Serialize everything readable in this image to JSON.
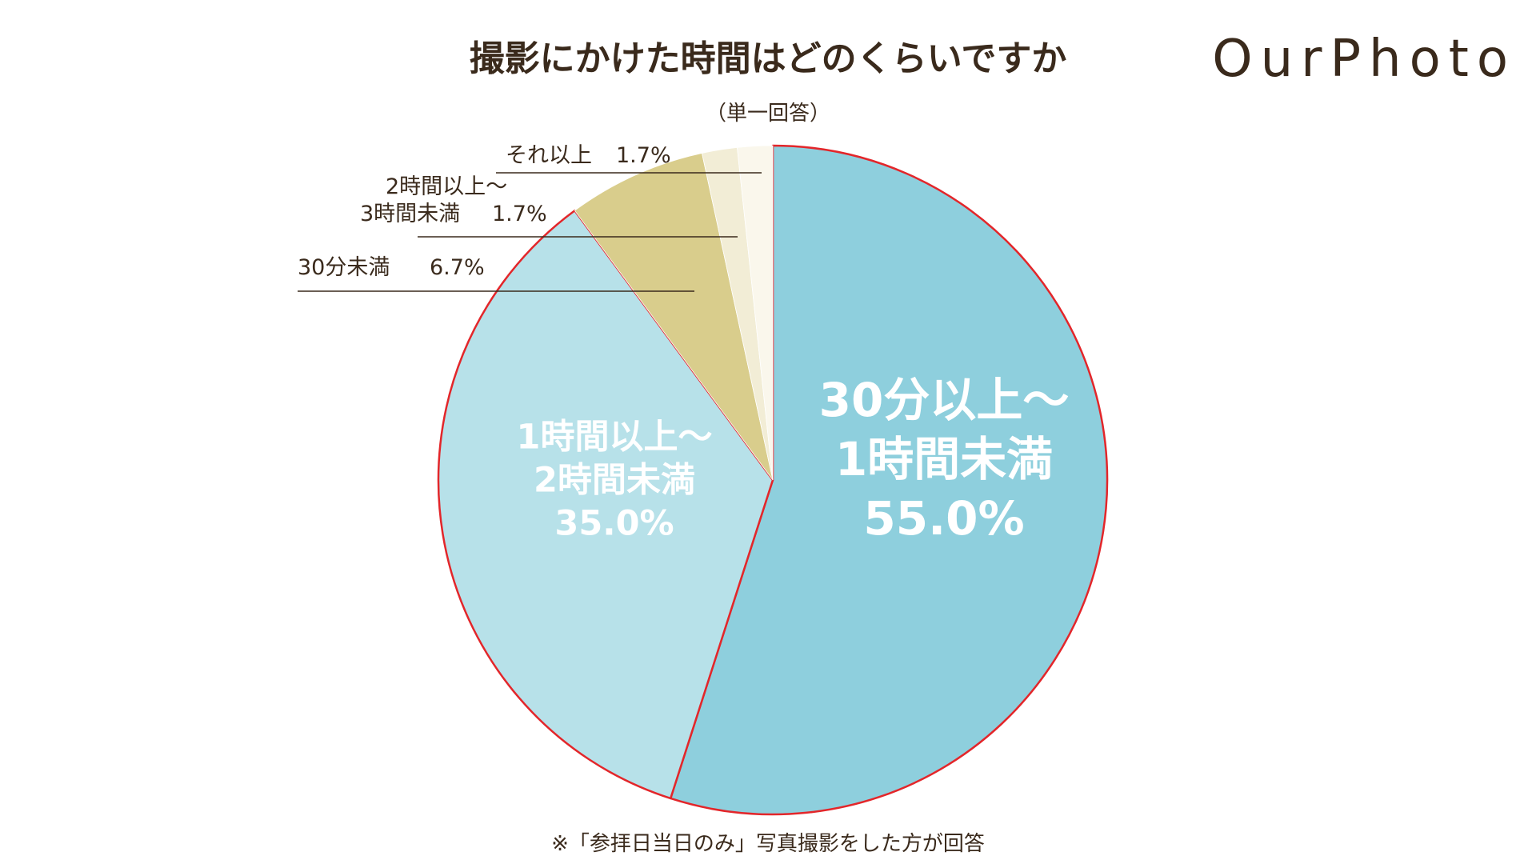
{
  "chart_data": {
    "type": "pie",
    "title": "撮影にかけた時間はどのくらいですか",
    "subtitle": "（単一回答）",
    "slices": [
      {
        "name": "30分以上〜1時間未満",
        "label_lines": [
          "30分以上〜",
          "1時間未満"
        ],
        "value": 55.0,
        "value_label": "55.0%",
        "color": "#8ecfdd",
        "highlight": true
      },
      {
        "name": "1時間以上〜2時間未満",
        "label_lines": [
          "1時間以上〜",
          "2時間未満"
        ],
        "value": 35.0,
        "value_label": "35.0%",
        "color": "#b7e1e9",
        "highlight": true
      },
      {
        "name": "30分未満",
        "label_lines": [
          "30分未満"
        ],
        "value": 6.7,
        "value_label": "6.7%",
        "color": "#d9cd8c",
        "highlight": false
      },
      {
        "name": "2時間以上〜3時間未満",
        "label_lines": [
          "2時間以上〜",
          "3時間未満"
        ],
        "value": 1.7,
        "value_label": "1.7%",
        "color": "#f2edd6",
        "highlight": false
      },
      {
        "name": "それ以上",
        "label_lines": [
          "それ以上"
        ],
        "value": 1.7,
        "value_label": "1.7%",
        "color": "#faf7ec",
        "highlight": false
      }
    ],
    "highlight_color": "#e3262a",
    "footnote": "※「参拝日当日のみ」写真撮影をした方が回答"
  },
  "logo": {
    "text": "OurPhoto"
  }
}
